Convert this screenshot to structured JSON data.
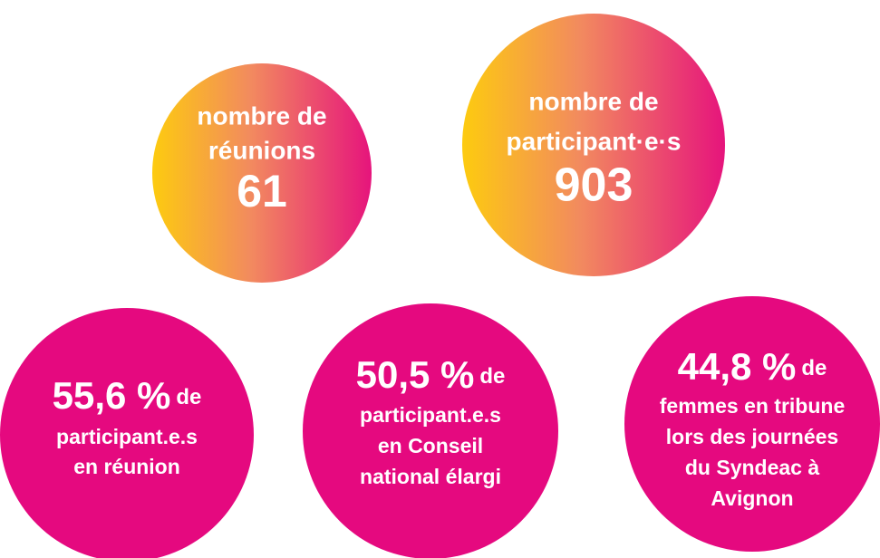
{
  "stats": [
    {
      "lines": [
        "nombre de",
        "réunions"
      ],
      "value": "61"
    },
    {
      "lines": [
        "nombre de",
        "participant·e·s"
      ],
      "value": "903"
    },
    {
      "value": "55,6 %",
      "suffix": "de",
      "lines": [
        "participant.e.s",
        "en réunion"
      ]
    },
    {
      "value": "50,5 %",
      "suffix": "de",
      "lines": [
        "participant.e.s",
        "en Conseil",
        "national élargi"
      ]
    },
    {
      "value": "44,8 %",
      "suffix": "de",
      "lines": [
        "femmes en tribune",
        "lors des journées",
        "du Syndeac à",
        "Avignon"
      ]
    }
  ]
}
